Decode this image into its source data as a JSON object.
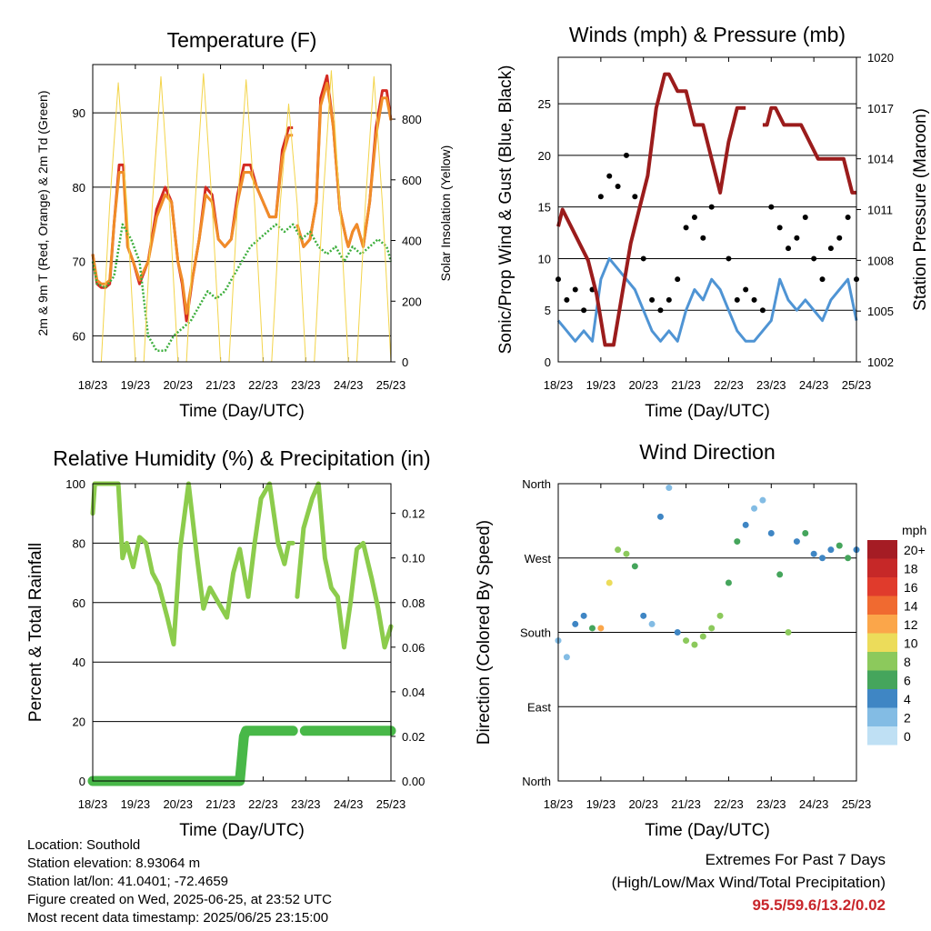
{
  "colors": {
    "red": "#d42a22",
    "orange": "#f08c28",
    "green": "#3cae3c",
    "yellow": "#f3d44a",
    "blue": "#4f94d4",
    "black": "#000000",
    "maroon": "#9b1c1c",
    "rh_green": "#8ccc4c",
    "precip_green": "#48b848"
  },
  "chart_data": [
    {
      "id": "temperature",
      "type": "line",
      "title": "Temperature (F)",
      "xlabel": "Time (Day/UTC)",
      "ylabel": "2m & 9m T (Red, Orange) & 2m Td (Green)",
      "ylabel_right": "Solar Insolation (Yellow)",
      "xticks": [
        "18/23",
        "19/23",
        "20/23",
        "21/23",
        "22/23",
        "23/23",
        "24/23",
        "25/23"
      ],
      "xlim": [
        0,
        7
      ],
      "ylim": [
        56.5,
        96.5
      ],
      "yticks": [
        60,
        70,
        80,
        90
      ],
      "ylim_right": [
        0,
        980
      ],
      "yticks_right": [
        0,
        200,
        400,
        600,
        800
      ],
      "series": [
        {
          "name": "2m T",
          "color": "red",
          "x": [
            0,
            0.1,
            0.2,
            0.3,
            0.4,
            0.5,
            0.62,
            0.72,
            0.82,
            0.95,
            1.1,
            1.3,
            1.5,
            1.7,
            1.85,
            2.0,
            2.1,
            2.2,
            2.35,
            2.5,
            2.65,
            2.8,
            2.95,
            3.1,
            3.25,
            3.4,
            3.55,
            3.7,
            3.85,
            4.0,
            4.15,
            4.3,
            4.45,
            4.6,
            4.7,
            4.72,
            4.8,
            4.95,
            5.1,
            5.25,
            5.35,
            5.5,
            5.65,
            5.8,
            5.95,
            6.0,
            6.1,
            6.2,
            6.35,
            6.5,
            6.65,
            6.8,
            6.9,
            7.0
          ],
          "y": [
            71,
            67,
            66.5,
            66.5,
            67,
            75,
            83,
            83,
            72,
            70,
            67,
            70,
            77,
            80,
            78,
            70,
            67,
            62,
            68,
            73,
            80,
            79,
            73,
            72,
            73,
            79,
            83,
            83,
            80,
            78,
            76,
            76,
            85,
            88,
            88,
            null,
            75,
            72,
            73,
            78,
            92,
            95,
            88,
            77,
            73,
            72,
            74,
            75,
            72,
            78,
            88,
            93,
            93,
            89
          ]
        },
        {
          "name": "9m T",
          "color": "orange",
          "x": [
            0,
            0.1,
            0.2,
            0.3,
            0.4,
            0.5,
            0.62,
            0.72,
            0.82,
            0.95,
            1.1,
            1.3,
            1.5,
            1.7,
            1.85,
            2.0,
            2.1,
            2.2,
            2.35,
            2.5,
            2.65,
            2.8,
            2.95,
            3.1,
            3.25,
            3.4,
            3.55,
            3.7,
            3.85,
            4.0,
            4.15,
            4.3,
            4.45,
            4.6,
            4.7,
            4.72,
            4.8,
            4.95,
            5.1,
            5.25,
            5.35,
            5.5,
            5.65,
            5.8,
            5.95,
            6.0,
            6.1,
            6.2,
            6.35,
            6.5,
            6.65,
            6.8,
            6.9,
            7.0
          ],
          "y": [
            71,
            67.5,
            67,
            67,
            67.5,
            75,
            82,
            82,
            72,
            70,
            67.5,
            70,
            76,
            79,
            78,
            70,
            67.5,
            63,
            68,
            73,
            79,
            78,
            73,
            72,
            73,
            78,
            82,
            82,
            80,
            78,
            76,
            76,
            84,
            87,
            87,
            null,
            75,
            72,
            73,
            78,
            91,
            94,
            88,
            77,
            73,
            72,
            74,
            75,
            72,
            78,
            87,
            92,
            92,
            89
          ]
        },
        {
          "name": "2m Td",
          "color": "green",
          "x": [
            0,
            0.1,
            0.3,
            0.5,
            0.7,
            0.9,
            1.1,
            1.3,
            1.5,
            1.7,
            1.9,
            2.1,
            2.3,
            2.5,
            2.7,
            2.9,
            3.1,
            3.3,
            3.5,
            3.7,
            3.9,
            4.1,
            4.3,
            4.5,
            4.7,
            4.9,
            5.1,
            5.3,
            5.5,
            5.7,
            5.9,
            6.1,
            6.3,
            6.5,
            6.7,
            6.9,
            7.0
          ],
          "y": [
            70,
            67,
            66.5,
            68,
            75,
            73,
            70,
            60,
            58,
            58,
            60,
            61,
            62,
            64,
            66,
            65,
            66,
            68,
            70,
            72,
            73,
            74,
            75,
            74,
            75,
            73,
            74,
            72,
            71,
            72,
            70,
            72,
            71,
            72,
            73,
            72,
            70
          ]
        },
        {
          "name": "Solar Insolation",
          "color": "yellow",
          "axis": "right",
          "x": [
            0,
            0.2,
            0.4,
            0.6,
            0.8,
            1,
            1.2,
            1.4,
            1.6,
            1.8,
            2,
            2.2,
            2.4,
            2.6,
            2.8,
            3,
            3.2,
            3.4,
            3.6,
            3.8,
            4,
            4.2,
            4.4,
            4.6,
            4.8,
            5,
            5.2,
            5.4,
            5.6,
            5.8,
            6,
            6.2,
            6.4,
            6.6,
            6.8,
            7
          ],
          "y": [
            0,
            0,
            520,
            920,
            520,
            0,
            0,
            520,
            940,
            520,
            0,
            0,
            520,
            950,
            520,
            0,
            0,
            520,
            930,
            520,
            0,
            0,
            520,
            850,
            520,
            0,
            0,
            520,
            960,
            520,
            0,
            0,
            520,
            940,
            520,
            0
          ]
        }
      ]
    },
    {
      "id": "winds",
      "type": "line",
      "title": "Winds (mph) & Pressure (mb)",
      "xlabel": "Time (Day/UTC)",
      "ylabel": "Sonic/Prop Wind & Gust (Blue, Black)",
      "ylabel_right": "Station Pressure (Maroon)",
      "xticks": [
        "18/23",
        "19/23",
        "20/23",
        "21/23",
        "22/23",
        "23/23",
        "24/23",
        "25/23"
      ],
      "xlim": [
        0,
        7
      ],
      "ylim": [
        0,
        29.5
      ],
      "yticks": [
        0,
        5,
        10,
        15,
        20,
        25
      ],
      "ylim_right": [
        1002,
        1020
      ],
      "yticks_right": [
        1002,
        1005,
        1008,
        1011,
        1014,
        1017,
        1020
      ],
      "series": [
        {
          "name": "Wind",
          "color": "blue",
          "x": [
            0,
            0.2,
            0.4,
            0.6,
            0.8,
            1.0,
            1.2,
            1.4,
            1.6,
            1.8,
            2.0,
            2.2,
            2.4,
            2.6,
            2.8,
            3.0,
            3.2,
            3.4,
            3.6,
            3.8,
            4.0,
            4.2,
            4.4,
            4.6,
            4.8,
            5.0,
            5.2,
            5.4,
            5.6,
            5.8,
            6.0,
            6.2,
            6.4,
            6.6,
            6.8,
            7.0
          ],
          "y": [
            4,
            3,
            2,
            3,
            2,
            8,
            10,
            9,
            8,
            7,
            5,
            3,
            2,
            3,
            2,
            5,
            7,
            6,
            8,
            7,
            5,
            3,
            2,
            2,
            3,
            4,
            8,
            6,
            5,
            6,
            5,
            4,
            6,
            7,
            8,
            4
          ]
        },
        {
          "name": "Gust",
          "color": "black",
          "x": [
            0,
            0.2,
            0.4,
            0.6,
            0.8,
            1.0,
            1.2,
            1.4,
            1.6,
            1.8,
            2.0,
            2.2,
            2.4,
            2.6,
            2.8,
            3.0,
            3.2,
            3.4,
            3.6,
            3.8,
            4.0,
            4.2,
            4.4,
            4.6,
            4.8,
            5.0,
            5.2,
            5.4,
            5.6,
            5.8,
            6.0,
            6.2,
            6.4,
            6.6,
            6.8,
            7.0
          ],
          "y": [
            8,
            6,
            7,
            5,
            7,
            16,
            18,
            17,
            20,
            16,
            10,
            6,
            5,
            6,
            8,
            13,
            14,
            12,
            15,
            17,
            10,
            6,
            7,
            6,
            5,
            15,
            13,
            11,
            12,
            14,
            10,
            8,
            11,
            12,
            14,
            8
          ]
        },
        {
          "name": "Station Pressure",
          "color": "maroon",
          "axis": "right",
          "x": [
            0,
            0.1,
            0.3,
            0.5,
            0.7,
            0.9,
            1.1,
            1.3,
            1.5,
            1.7,
            1.9,
            2.1,
            2.3,
            2.5,
            2.6,
            2.8,
            3.0,
            3.2,
            3.4,
            3.6,
            3.8,
            4.0,
            4.2,
            4.4,
            4.6,
            4.8,
            4.9,
            5.0,
            5.1,
            5.3,
            5.5,
            5.7,
            5.9,
            6.1,
            6.3,
            6.5,
            6.7,
            6.9,
            7.0
          ],
          "y": [
            1010,
            1011,
            1010,
            1009,
            1008,
            1006,
            1003,
            1003,
            1006,
            1009,
            1011,
            1013,
            1017,
            1019,
            1019,
            1018,
            1018,
            1016,
            1016,
            1014,
            1012,
            1015,
            1017,
            1017,
            null,
            1016,
            1016,
            1017,
            1017,
            1016,
            1016,
            1016,
            1015,
            1014,
            1014,
            1014,
            1014,
            1012,
            1012
          ]
        }
      ]
    },
    {
      "id": "humidity",
      "type": "line",
      "title": "Relative Humidity (%) & Precipitation (in)",
      "xlabel": "Time (Day/UTC)",
      "ylabel": "Percent & Total Rainfall",
      "xticks": [
        "18/23",
        "19/23",
        "20/23",
        "21/23",
        "22/23",
        "23/23",
        "24/23",
        "25/23"
      ],
      "xlim": [
        0,
        7
      ],
      "ylim": [
        0,
        100
      ],
      "yticks": [
        0,
        20,
        40,
        60,
        80,
        100
      ],
      "ylim_right": [
        0,
        0.1333
      ],
      "yticks_right": [
        "0.00",
        "0.02",
        "0.04",
        "0.06",
        "0.08",
        "0.10",
        "0.12"
      ],
      "series": [
        {
          "name": "Relative Humidity",
          "color": "rh_green",
          "x": [
            0,
            0.05,
            0.15,
            0.3,
            0.6,
            0.7,
            0.8,
            0.95,
            1.1,
            1.25,
            1.4,
            1.55,
            1.75,
            1.9,
            2.05,
            2.25,
            2.45,
            2.6,
            2.75,
            2.95,
            3.15,
            3.3,
            3.45,
            3.65,
            3.8,
            3.95,
            4.15,
            4.35,
            4.5,
            4.6,
            4.7,
            4.72,
            4.8,
            4.95,
            5.15,
            5.3,
            5.45,
            5.6,
            5.75,
            5.9,
            6.05,
            6.2,
            6.35,
            6.55,
            6.7,
            6.85,
            7.0
          ],
          "y": [
            90,
            100,
            100,
            100,
            100,
            75,
            80,
            72,
            82,
            80,
            70,
            66,
            55,
            46,
            78,
            100,
            75,
            58,
            65,
            60,
            55,
            70,
            78,
            62,
            80,
            95,
            100,
            80,
            73,
            80,
            80,
            null,
            62,
            85,
            95,
            100,
            75,
            65,
            62,
            45,
            60,
            78,
            80,
            68,
            58,
            45,
            52
          ]
        },
        {
          "name": "Total Precipitation",
          "color": "precip_green",
          "axis": "right",
          "x": [
            0,
            1,
            2,
            3,
            3.45,
            3.5,
            3.55,
            3.6,
            4.0,
            4.5,
            4.7,
            4.72,
            4.98,
            5.5,
            6.0,
            6.5,
            7.0
          ],
          "y": [
            0,
            0,
            0,
            0,
            0,
            0.01,
            0.02,
            0.0225,
            0.0225,
            0.0225,
            0.0225,
            null,
            0.0225,
            0.0225,
            0.0225,
            0.0225,
            0.0225
          ]
        }
      ]
    },
    {
      "id": "wind_direction",
      "type": "scatter",
      "title": "Wind Direction",
      "xlabel": "Time (Day/UTC)",
      "ylabel": "Direction (Colored By Speed)",
      "xticks": [
        "18/23",
        "19/23",
        "20/23",
        "21/23",
        "22/23",
        "23/23",
        "24/23",
        "25/23"
      ],
      "xlim": [
        0,
        7
      ],
      "ylim": [
        0,
        360
      ],
      "yticks": [
        "North",
        "East",
        "South",
        "West",
        "North"
      ],
      "legend": {
        "title": "mph",
        "labels": [
          "20+",
          "18",
          "16",
          "14",
          "12",
          "10",
          "8",
          "6",
          "4",
          "2",
          "0"
        ],
        "colors": [
          "#a51c24",
          "#c62828",
          "#e03b2c",
          "#f06a30",
          "#fba64a",
          "#ecdc5a",
          "#8cc95c",
          "#45a55c",
          "#3f86c4",
          "#83bce4",
          "#bfe0f4"
        ]
      },
      "series": [
        {
          "name": "direction",
          "x": [
            0,
            0.2,
            0.4,
            0.6,
            0.8,
            1.0,
            1.2,
            1.4,
            1.6,
            1.8,
            2.0,
            2.2,
            2.4,
            2.6,
            2.8,
            3.0,
            3.2,
            3.4,
            3.6,
            3.8,
            4.0,
            4.2,
            4.4,
            4.6,
            4.8,
            5.0,
            5.2,
            5.4,
            5.6,
            5.8,
            6.0,
            6.2,
            6.4,
            6.6,
            6.8,
            7.0
          ],
          "y": [
            170,
            150,
            190,
            200,
            185,
            185,
            240,
            280,
            275,
            260,
            200,
            190,
            320,
            355,
            180,
            170,
            165,
            175,
            185,
            200,
            240,
            290,
            310,
            330,
            340,
            300,
            250,
            180,
            290,
            300,
            275,
            270,
            280,
            285,
            270,
            280
          ],
          "speed": [
            3,
            2,
            4,
            5,
            6,
            12,
            10,
            8,
            8,
            6,
            4,
            3,
            4,
            3,
            5,
            8,
            9,
            8,
            9,
            9,
            7,
            6,
            4,
            3,
            3,
            4,
            7,
            9,
            5,
            6,
            5,
            4,
            5,
            6,
            6,
            4
          ]
        }
      ]
    }
  ],
  "info": {
    "location": "Location: Southold",
    "elevation": "Station elevation: 8.93064 m",
    "latlon": "Station lat/lon: 41.0401; -72.4659",
    "created": "Figure created on Wed, 2025-06-25, at 23:52 UTC",
    "recent": "Most recent data timestamp: 2025/06/25 23:15:00"
  },
  "extremes": {
    "line1": "Extremes For Past 7 Days",
    "line2": "(High/Low/Max Wind/Total Precipitation)",
    "values": "95.5/59.6/13.2/0.02"
  }
}
